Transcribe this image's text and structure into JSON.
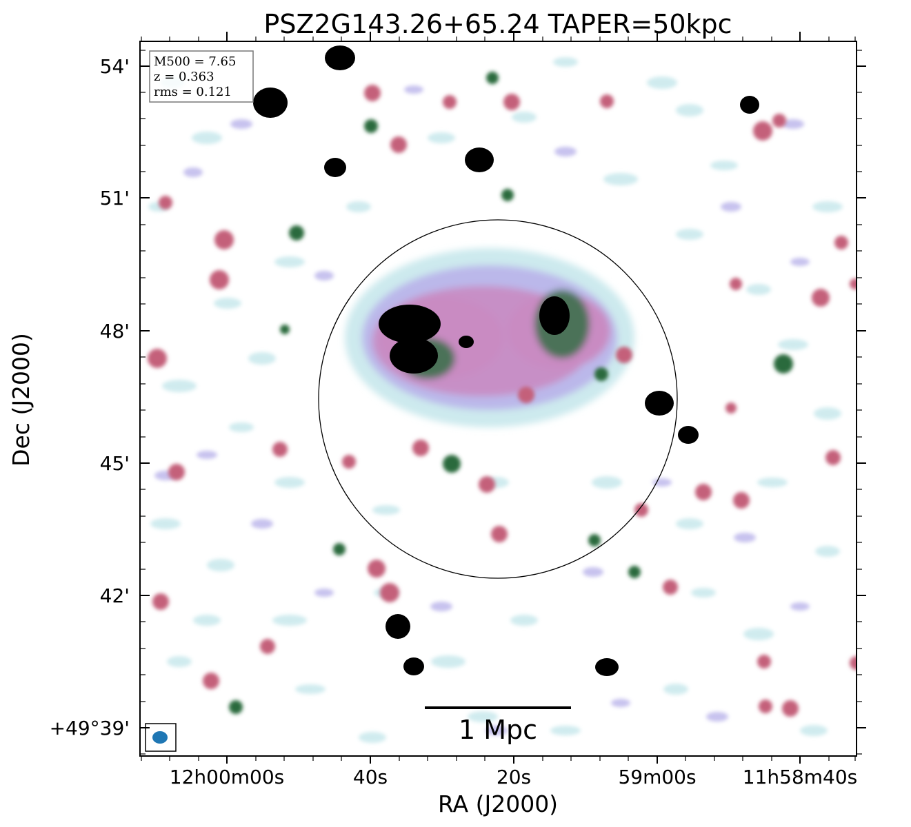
{
  "figure": {
    "title": "PSZ2G143.26+65.24 TAPER=50kpc",
    "x_axis_label": "RA (J2000)",
    "y_axis_label": "Dec (J2000)",
    "x_ticks": [
      "12h00m00s",
      "40s",
      "20s",
      "59m00s",
      "11h58m40s"
    ],
    "y_ticks": [
      "54'",
      "51'",
      "48'",
      "45'",
      "42'",
      "+49°39'"
    ],
    "info_box": {
      "m500": "M500 = 7.65",
      "z": "z = 0.363",
      "rms": "rms = 0.121"
    },
    "scale_bar_label": "1 Mpc",
    "colors": {
      "background": "#ffffff",
      "faint_emission": "#c8e8ec",
      "low_emission": "#b9b3ea",
      "mid_emission": "#c98bc2",
      "high_emission": "#c4607a",
      "peak_emission": "#2c6b3e",
      "saturated": "#000000",
      "beam": "#1f77b4"
    }
  }
}
